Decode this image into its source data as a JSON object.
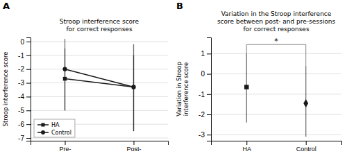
{
  "chart_data": [
    {
      "type": "line",
      "title": "Stroop interference score\nfor correct responses",
      "ylabel": "Stroop interference score",
      "categories": [
        "Pre-",
        "Post-"
      ],
      "series": [
        {
          "name": "HA",
          "color": "#1a1a1a",
          "marker": "square",
          "values": [
            -2.7,
            -3.3
          ],
          "ci_lo": [
            -5.0,
            -6.5
          ],
          "ci_hi": [
            -0.5,
            -1.0
          ]
        },
        {
          "name": "Control",
          "color": "#1a1a1a",
          "marker": "circle",
          "values": [
            -2.0,
            -3.3
          ],
          "ci_lo": [
            -5.0,
            -6.5
          ],
          "ci_hi": [
            0.2,
            -0.2
          ]
        }
      ],
      "ylim": [
        -7.2,
        0.3
      ],
      "yticks": [
        0,
        -1,
        -2,
        -3,
        -4,
        -5,
        -6,
        -7
      ],
      "grid": true,
      "legend": "lower left",
      "annotations": [
        {
          "text": "A"
        }
      ]
    },
    {
      "type": "point",
      "title": "Variation in the Stroop interference\nscore between post- and pre-sessions\nfor correct responses",
      "ylabel": "Variation in Stroop\ninterference score",
      "categories": [
        "HA",
        "Control"
      ],
      "series": [
        {
          "name": "HA",
          "color": "#1a1a1a",
          "marker": "square",
          "values": [
            -0.65,
            null
          ],
          "ci_lo": [
            -2.4,
            null
          ],
          "ci_hi": [
            1.0,
            null
          ]
        },
        {
          "name": "Control",
          "color": "#1a1a1a",
          "marker": "diamond",
          "values": [
            null,
            -1.45
          ],
          "ci_lo": [
            null,
            -3.1
          ],
          "ci_hi": [
            null,
            0.4
          ]
        }
      ],
      "ylim": [
        -3.3,
        1.8
      ],
      "yticks": [
        1,
        0,
        -1,
        -2,
        -3
      ],
      "grid": true,
      "bracket_y": 1.45,
      "annotations": [
        {
          "text": "B"
        },
        {
          "text": "*",
          "y": 1.5
        }
      ]
    }
  ]
}
